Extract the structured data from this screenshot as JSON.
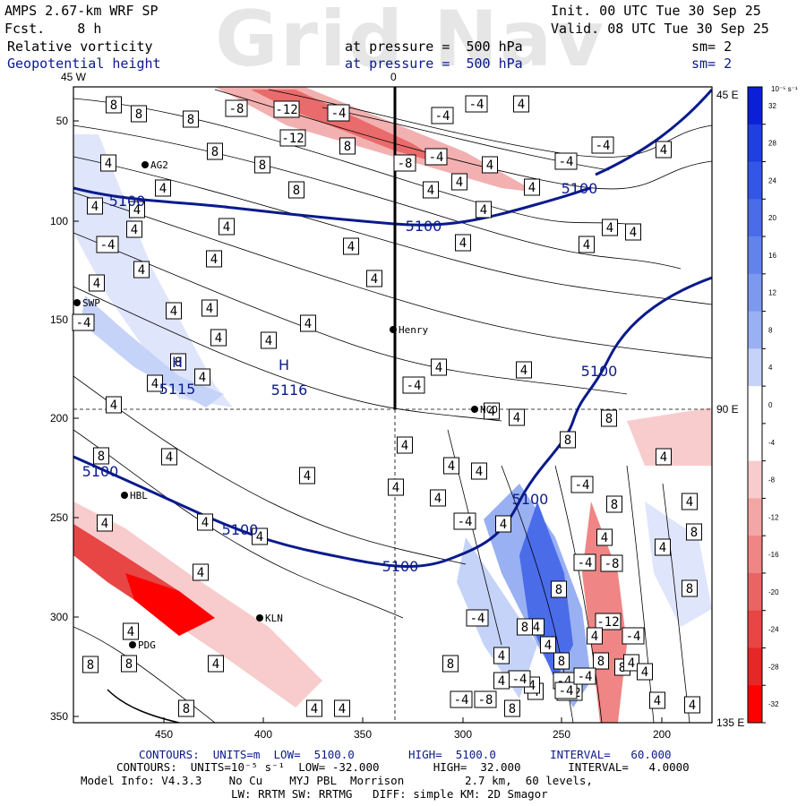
{
  "header": {
    "model_line": "AMPS 2.67-km WRF SP",
    "fcst_line": "Fcst.    8 h",
    "init_line": "Init. 00 UTC Tue 30 Sep 25",
    "valid_line": "Valid. 08 UTC Tue 30 Sep 25",
    "var1_name": "Relative vorticity",
    "var1_level": "at pressure =  500 hPa",
    "var1_sm": "sm= 2",
    "var2_name": "Geopotential height",
    "var2_level": "at pressure =  500 hPa",
    "var2_sm": "sm= 2",
    "watermark": "Grid Nav"
  },
  "axes": {
    "top_labels": [
      {
        "text": "45 W"
      },
      {
        "text": "0"
      }
    ],
    "left_ticks": [
      "50",
      "100",
      "150",
      "200",
      "250",
      "300",
      "350"
    ],
    "bottom_ticks": [
      "450",
      "400",
      "350",
      "300",
      "250",
      "200"
    ],
    "right_labels": [
      "45 E",
      "90 E",
      "135 E"
    ]
  },
  "colorbar": {
    "unit": "10⁻⁵ s⁻¹",
    "tick_labels": [
      "32",
      "28",
      "24",
      "20",
      "16",
      "12",
      "8",
      "4",
      "0",
      "-4",
      "-8",
      "-12",
      "-16",
      "-20",
      "-24",
      "-28",
      "-32"
    ],
    "colors": [
      "#0a1fd6",
      "#1f3fe0",
      "#3456e6",
      "#4a6ce9",
      "#6383ec",
      "#7d98ef",
      "#99b0f3",
      "#c6d3f8",
      "#ffffff",
      "#ffffff",
      "#f8cccc",
      "#f3a6a6",
      "#ef8585",
      "#eb6464",
      "#e84545",
      "#e52727",
      "#ff0000"
    ]
  },
  "stations": [
    {
      "label": "AG2"
    },
    {
      "label": "SWP"
    },
    {
      "label": "Henry"
    },
    {
      "label": "NCO"
    },
    {
      "label": "HBL"
    },
    {
      "label": "KLN"
    },
    {
      "label": "PDG"
    }
  ],
  "height_contour_labels": [
    "5100",
    "5100",
    "5100",
    "5100",
    "5100",
    "5100",
    "5100",
    "5100"
  ],
  "high_centers": [
    {
      "text": "H",
      "value": "5115"
    },
    {
      "text": "H",
      "value": "5116"
    }
  ],
  "vorticity_box_labels": [
    "8",
    "8",
    "-8",
    "-12",
    "-4",
    "-4",
    "-4",
    "4",
    "8",
    "8",
    "-12",
    "8",
    "-8",
    "-4",
    "4",
    "-4",
    "-4",
    "4",
    "4",
    "4",
    "8",
    "8",
    "4",
    "4",
    "4",
    "4",
    "4",
    "4",
    "-4",
    "4",
    "4",
    "4",
    "4",
    "4",
    "4",
    "4",
    "4",
    "4",
    "4",
    "4",
    "-4",
    "4",
    "4",
    "4",
    "4",
    "4",
    "4",
    "4",
    "-4",
    "4",
    "4",
    "8",
    "4",
    "4",
    "4",
    "8",
    "8",
    "4",
    "4",
    "4",
    "4",
    "8",
    "4",
    "4",
    "4",
    "4",
    "-4",
    "4",
    "-4",
    "8",
    "4",
    "4",
    "4",
    "4",
    "4",
    "-4",
    "8",
    "4",
    "-8",
    "8",
    "4",
    "8",
    "-4",
    "4",
    "-12",
    "-4",
    "4",
    "8",
    "4",
    "8",
    "4",
    "8",
    "-12",
    "8",
    "-4",
    "8",
    "4",
    "4",
    "-4",
    "-8",
    "8",
    "4",
    "4",
    "4",
    "8",
    "4",
    "-4",
    "-4",
    "8",
    "4",
    "4",
    "-4",
    "4",
    "4",
    "4",
    "8"
  ],
  "footer": {
    "line1": "CONTOURS:  UNITS=m  LOW=  5100.0        HIGH=  5100.0        INTERVAL=   60.000",
    "line2": "CONTOURS:  UNITS=10⁻⁵ s⁻¹  LOW= -32.000        HIGH=  32.000       INTERVAL=   4.0000",
    "line3": "Model Info: V4.3.3    No Cu    MYJ PBL  Morrison         2.7 km,  60 levels,",
    "line4": "LW: RRTM SW: RRTMG   DIFF: simple KM: 2D Smagor"
  },
  "colors": {
    "navy": "#0a1a8c",
    "red": "#e52727",
    "blue": "#2a4de0"
  }
}
